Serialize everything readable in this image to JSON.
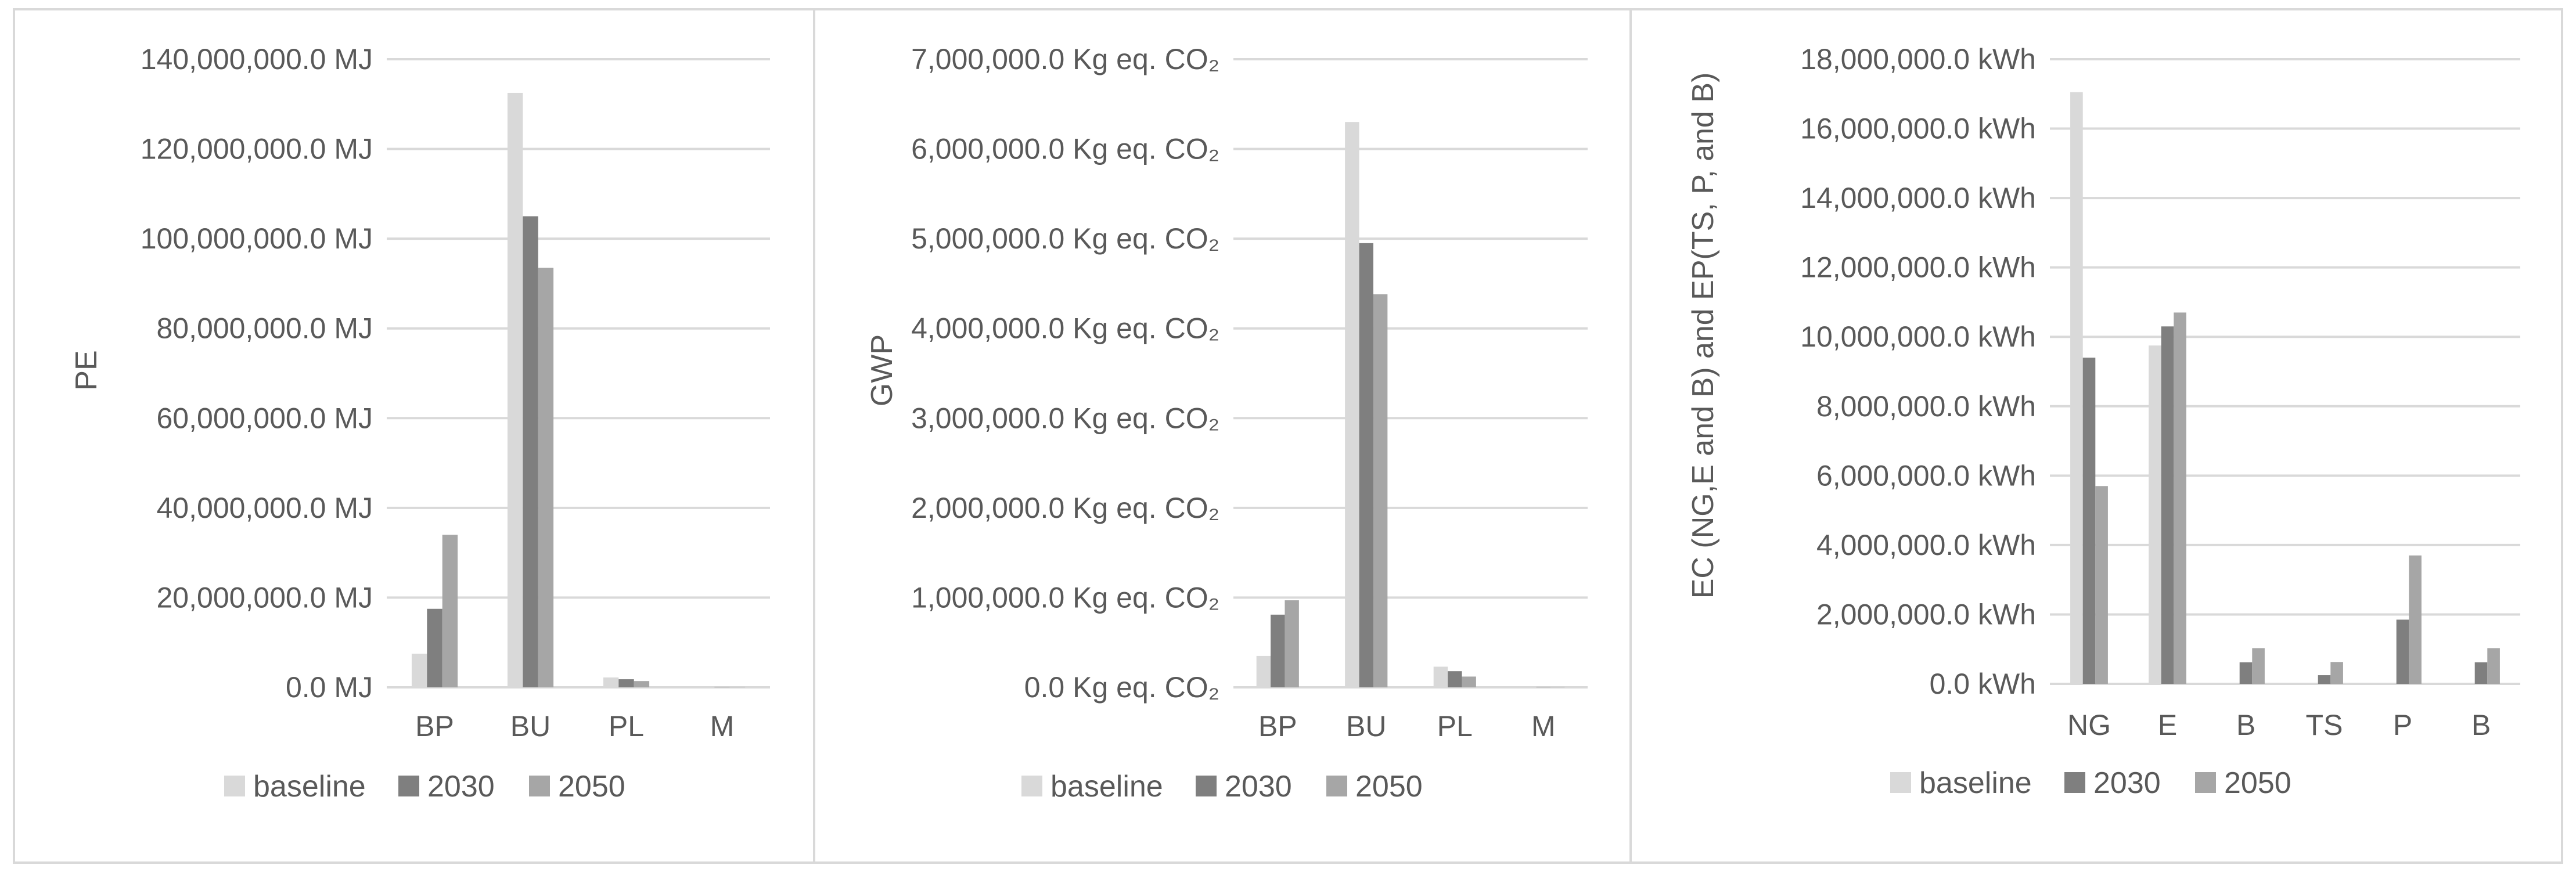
{
  "colors": {
    "baseline": "#d9d9d9",
    "2030": "#7f7f7f",
    "2050": "#a6a6a6",
    "grid": "#d9d9d9",
    "text": "#595959"
  },
  "chart_data": [
    {
      "type": "bar",
      "ylabel": "PE",
      "categories": [
        "BP",
        "BU",
        "PL",
        "M"
      ],
      "tick_labels": [
        "0.0 MJ",
        "20,000,000.0 MJ",
        "40,000,000.0 MJ",
        "60,000,000.0 MJ",
        "80,000,000.0 MJ",
        "100,000,000.0 MJ",
        "120,000,000.0 MJ",
        "140,000,000.0 MJ"
      ],
      "ylim": [
        0,
        140000000
      ],
      "yticks": [
        0,
        20000000,
        40000000,
        60000000,
        80000000,
        100000000,
        120000000,
        140000000
      ],
      "legend": "bottom",
      "series": [
        {
          "name": "baseline",
          "values": [
            7500000,
            132500000,
            2200000,
            200000
          ]
        },
        {
          "name": "2030",
          "values": [
            17500000,
            105000000,
            1800000,
            100000
          ]
        },
        {
          "name": "2050",
          "values": [
            34000000,
            93500000,
            1400000,
            100000
          ]
        }
      ]
    },
    {
      "type": "bar",
      "ylabel": "GWP",
      "categories": [
        "BP",
        "BU",
        "PL",
        "M"
      ],
      "tick_labels": [
        "0.0 Kg eq. CO₂",
        "1,000,000.0 Kg eq. CO₂",
        "2,000,000.0 Kg eq. CO₂",
        "3,000,000.0 Kg eq. CO₂",
        "4,000,000.0 Kg eq. CO₂",
        "5,000,000.0 Kg eq. CO₂",
        "6,000,000.0 Kg eq. CO₂",
        "7,000,000.0 Kg eq. CO₂"
      ],
      "ylim": [
        0,
        7000000
      ],
      "yticks": [
        0,
        1000000,
        2000000,
        3000000,
        4000000,
        5000000,
        6000000,
        7000000
      ],
      "legend": "bottom",
      "series": [
        {
          "name": "baseline",
          "values": [
            350000,
            6300000,
            230000,
            10000
          ]
        },
        {
          "name": "2030",
          "values": [
            810000,
            4950000,
            180000,
            5000
          ]
        },
        {
          "name": "2050",
          "values": [
            970000,
            4380000,
            120000,
            5000
          ]
        }
      ]
    },
    {
      "type": "bar",
      "ylabel": "EC (NG,E and B) and EP(TS, P, and B)",
      "categories": [
        "NG",
        "E",
        "B",
        "TS",
        "P",
        "B"
      ],
      "tick_labels": [
        "0.0 kWh",
        "2,000,000.0 kWh",
        "4,000,000.0 kWh",
        "6,000,000.0 kWh",
        "8,000,000.0 kWh",
        "10,000,000.0 kWh",
        "12,000,000.0 kWh",
        "14,000,000.0 kWh",
        "16,000,000.0 kWh",
        "18,000,000.0 kWh"
      ],
      "ylim": [
        0,
        18000000
      ],
      "yticks": [
        0,
        2000000,
        4000000,
        6000000,
        8000000,
        10000000,
        12000000,
        14000000,
        16000000,
        18000000
      ],
      "legend": "bottom",
      "series": [
        {
          "name": "baseline",
          "values": [
            17050000,
            9750000,
            0,
            0,
            0,
            0
          ]
        },
        {
          "name": "2030",
          "values": [
            9400000,
            10300000,
            620000,
            250000,
            1850000,
            620000
          ]
        },
        {
          "name": "2050",
          "values": [
            5700000,
            10700000,
            1030000,
            630000,
            3700000,
            1030000
          ]
        }
      ]
    }
  ]
}
